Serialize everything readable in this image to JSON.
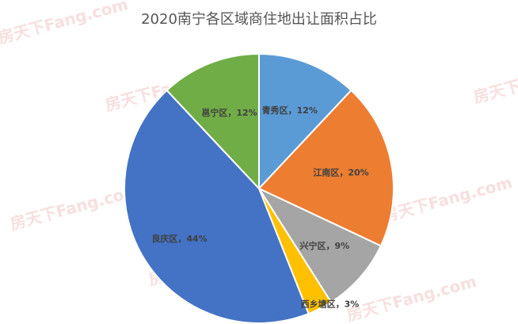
{
  "chart_data": {
    "type": "pie",
    "title": "2020南宁各区域商住地出让面积占比",
    "categories": [
      "青秀区",
      "江南区",
      "兴宁区",
      "西乡塘区",
      "良庆区",
      "邕宁区"
    ],
    "values": [
      12,
      20,
      9,
      3,
      44,
      12
    ],
    "labels": [
      "青秀区，12%",
      "江南区，20%",
      "兴宁区，9%",
      "西乡塘区，3%",
      "良庆区，44%",
      "邕宁区，12%"
    ],
    "colors": [
      "#5b9bd5",
      "#ed7d31",
      "#a5a5a5",
      "#ffc000",
      "#4472c4",
      "#70ad47"
    ],
    "unit": "%"
  },
  "watermark": "房天下Fang.com"
}
